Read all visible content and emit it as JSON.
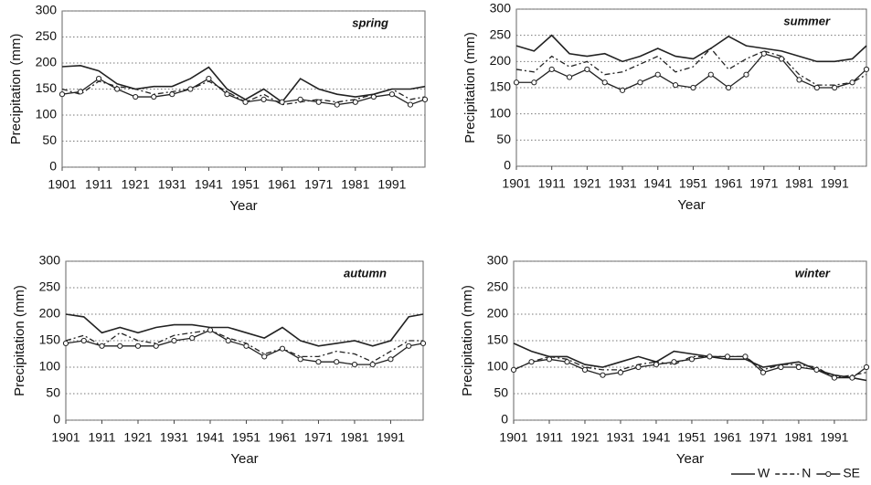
{
  "chart_data": [
    {
      "type": "line",
      "title": "spring",
      "x_label": "Year",
      "y_label": "Precipitation (mm)",
      "x": [
        1901,
        1906,
        1911,
        1916,
        1921,
        1926,
        1931,
        1936,
        1941,
        1946,
        1951,
        1956,
        1961,
        1966,
        1971,
        1976,
        1981,
        1986,
        1991,
        1996,
        2000
      ],
      "xlim": [
        1901,
        2000
      ],
      "xticks": [
        1901,
        1911,
        1921,
        1931,
        1941,
        1951,
        1961,
        1971,
        1981,
        1991
      ],
      "ylim": [
        0,
        300
      ],
      "yticks": [
        0,
        50,
        100,
        150,
        200,
        250,
        300
      ],
      "grid": true,
      "series": [
        {
          "color": "#222",
          "values": [
            193,
            195,
            185,
            160,
            150,
            155,
            155,
            170,
            192,
            150,
            130,
            150,
            125,
            170,
            150,
            140,
            135,
            140,
            150,
            150,
            155
          ]
        },
        {
          "color": "#222",
          "values": [
            150,
            140,
            165,
            155,
            150,
            140,
            145,
            150,
            165,
            145,
            125,
            140,
            120,
            125,
            130,
            125,
            130,
            140,
            150,
            130,
            135
          ]
        },
        {
          "color": "#222",
          "values": [
            140,
            145,
            170,
            150,
            135,
            135,
            140,
            150,
            170,
            140,
            125,
            130,
            125,
            130,
            125,
            120,
            125,
            135,
            140,
            120,
            130
          ]
        }
      ]
    },
    {
      "type": "line",
      "title": "summer",
      "x_label": "Year",
      "y_label": "Precipitation (mm)",
      "x": [
        1901,
        1906,
        1911,
        1916,
        1921,
        1926,
        1931,
        1936,
        1941,
        1946,
        1951,
        1956,
        1961,
        1966,
        1971,
        1976,
        1981,
        1986,
        1991,
        1996,
        2000
      ],
      "xlim": [
        1901,
        2000
      ],
      "xticks": [
        1901,
        1911,
        1921,
        1931,
        1941,
        1951,
        1961,
        1971,
        1981,
        1991
      ],
      "ylim": [
        0,
        300
      ],
      "yticks": [
        0,
        50,
        100,
        150,
        200,
        250,
        300
      ],
      "grid": true,
      "series": [
        {
          "color": "#222",
          "values": [
            230,
            220,
            250,
            215,
            210,
            215,
            200,
            210,
            225,
            210,
            205,
            225,
            248,
            230,
            225,
            220,
            210,
            200,
            200,
            205,
            230
          ]
        },
        {
          "color": "#222",
          "values": [
            185,
            180,
            210,
            190,
            200,
            175,
            180,
            195,
            210,
            180,
            190,
            225,
            185,
            205,
            220,
            210,
            175,
            155,
            155,
            160,
            175
          ]
        },
        {
          "color": "#222",
          "values": [
            160,
            160,
            185,
            170,
            185,
            160,
            145,
            160,
            175,
            155,
            150,
            175,
            150,
            175,
            215,
            205,
            165,
            150,
            150,
            160,
            185
          ]
        }
      ]
    },
    {
      "type": "line",
      "title": "autumn",
      "x_label": "Year",
      "y_label": "Precipitation (mm)",
      "x": [
        1901,
        1906,
        1911,
        1916,
        1921,
        1926,
        1931,
        1936,
        1941,
        1946,
        1951,
        1956,
        1961,
        1966,
        1971,
        1976,
        1981,
        1986,
        1991,
        1996,
        2000
      ],
      "xlim": [
        1901,
        2000
      ],
      "xticks": [
        1901,
        1911,
        1921,
        1931,
        1941,
        1951,
        1961,
        1971,
        1981,
        1991
      ],
      "ylim": [
        0,
        300
      ],
      "yticks": [
        0,
        50,
        100,
        150,
        200,
        250,
        300
      ],
      "grid": true,
      "series": [
        {
          "color": "#222",
          "values": [
            200,
            195,
            165,
            175,
            165,
            175,
            180,
            180,
            175,
            175,
            165,
            155,
            175,
            150,
            140,
            145,
            150,
            140,
            150,
            195,
            200
          ]
        },
        {
          "color": "#222",
          "values": [
            150,
            160,
            140,
            165,
            150,
            145,
            160,
            165,
            170,
            155,
            145,
            125,
            135,
            120,
            120,
            130,
            125,
            110,
            130,
            150,
            150
          ]
        },
        {
          "color": "#222",
          "values": [
            145,
            150,
            140,
            140,
            140,
            140,
            150,
            155,
            170,
            150,
            140,
            120,
            135,
            115,
            110,
            110,
            105,
            105,
            115,
            140,
            145
          ]
        }
      ]
    },
    {
      "type": "line",
      "title": "winter",
      "x_label": "Year",
      "y_label": "Precipitation (mm)",
      "x": [
        1901,
        1906,
        1911,
        1916,
        1921,
        1926,
        1931,
        1936,
        1941,
        1946,
        1951,
        1956,
        1961,
        1966,
        1971,
        1976,
        1981,
        1986,
        1991,
        1996,
        2000
      ],
      "xlim": [
        1901,
        2000
      ],
      "xticks": [
        1901,
        1911,
        1921,
        1931,
        1941,
        1951,
        1961,
        1971,
        1981,
        1991
      ],
      "ylim": [
        0,
        300
      ],
      "yticks": [
        0,
        50,
        100,
        150,
        200,
        250,
        300
      ],
      "grid": true,
      "series": [
        {
          "color": "#222",
          "values": [
            145,
            130,
            120,
            120,
            105,
            100,
            110,
            120,
            110,
            130,
            125,
            120,
            115,
            115,
            100,
            105,
            110,
            95,
            85,
            80,
            75
          ]
        },
        {
          "color": "#222",
          "values": [
            95,
            110,
            120,
            115,
            100,
            95,
            95,
            105,
            110,
            105,
            120,
            120,
            120,
            120,
            95,
            105,
            105,
            100,
            80,
            85,
            90
          ]
        },
        {
          "color": "#222",
          "values": [
            95,
            110,
            115,
            110,
            95,
            85,
            90,
            100,
            105,
            110,
            115,
            120,
            120,
            120,
            90,
            100,
            100,
            95,
            80,
            80,
            100
          ]
        }
      ]
    }
  ],
  "legend": [
    {
      "name": "W",
      "style": "solid"
    },
    {
      "name": "N",
      "style": "dashed"
    },
    {
      "name": "SE",
      "style": "circles"
    }
  ]
}
